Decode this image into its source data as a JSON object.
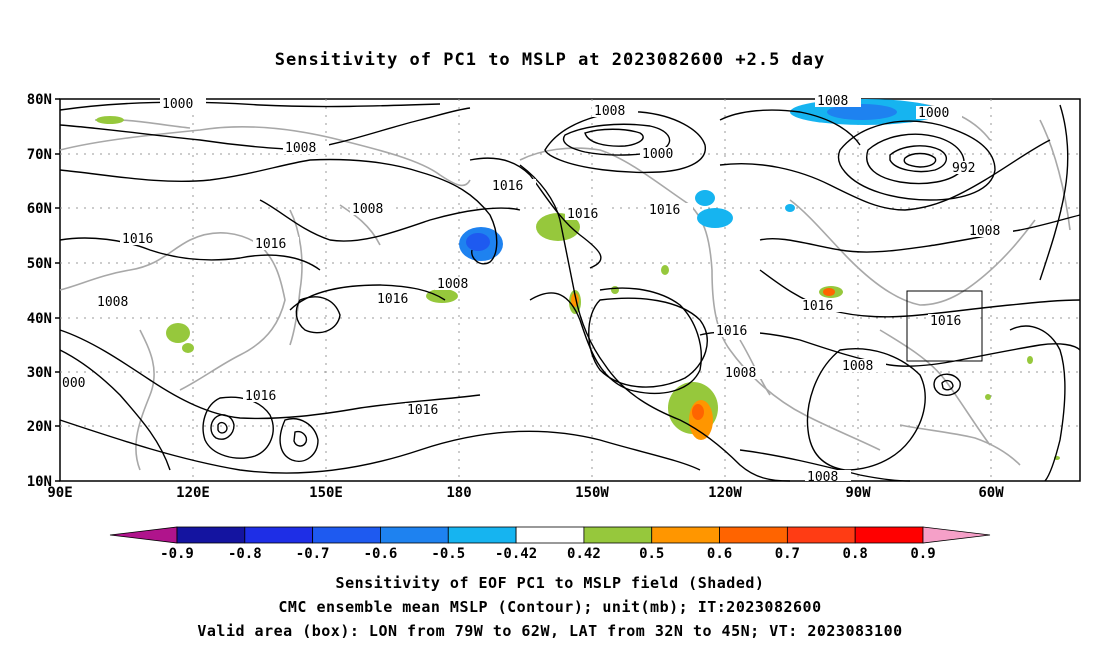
{
  "title": "Sensitivity of PC1 to MSLP at 2023082600 +2.5 day",
  "lat_labels": [
    "80N",
    "70N",
    "60N",
    "50N",
    "40N",
    "30N",
    "20N",
    "10N"
  ],
  "lon_labels": [
    "90E",
    "120E",
    "150E",
    "180",
    "150W",
    "120W",
    "90W",
    "60W"
  ],
  "contour_labels": [
    "1000",
    "1008",
    "1008",
    "1000",
    "1008",
    "1016",
    "1016",
    "1016",
    "1008",
    "1016",
    "1008",
    "1016",
    "1016",
    "1016",
    "1000",
    "992",
    "1008",
    "1008",
    "1016",
    "1016",
    "1016",
    "1008",
    "1008",
    "1016",
    "1008",
    "000"
  ],
  "colorbar": {
    "labels": [
      "-0.9",
      "-0.8",
      "-0.7",
      "-0.6",
      "-0.5",
      "-0.42",
      "0.42",
      "0.5",
      "0.6",
      "0.7",
      "0.8",
      "0.9"
    ],
    "colors": [
      "#b0148c",
      "#1414a0",
      "#1e2ee6",
      "#1e5af0",
      "#1e82f0",
      "#16b4f0",
      "#ffffff",
      "#96c83c",
      "#ff9600",
      "#ff6400",
      "#ff3c14",
      "#ff0000",
      "#f5a0c8"
    ]
  },
  "box": {
    "lon_from": "79W",
    "lon_to": "62W",
    "lat_from": "32N",
    "lat_to": "45N"
  },
  "footer": {
    "line1": "Sensitivity of EOF PC1 to MSLP field (Shaded)",
    "line2": "CMC ensemble mean MSLP (Contour); unit(mb); IT:2023082600",
    "line3": "Valid area (box): LON from 79W to 62W, LAT from 32N to 45N; VT: 2023083100"
  }
}
